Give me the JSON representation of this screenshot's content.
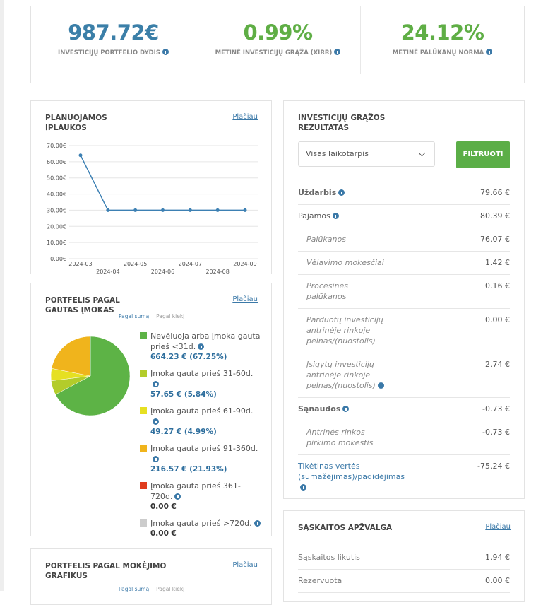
{
  "stats": [
    {
      "value": "987.72€",
      "label": "INVESTICIJŲ PORTFELIO DYDIS",
      "color": "#3b7fa8"
    },
    {
      "value": "0.99%",
      "label": "METINĖ INVESTICIJŲ GRĄŽA (XIRR)",
      "color": "#5fae45"
    },
    {
      "value": "24.12%",
      "label": "METINĖ PALŪKANŲ NORMA",
      "color": "#5fae45"
    }
  ],
  "planned": {
    "title": "PLANUOJAMOS ĮPLAUKOS",
    "link": "Plačiau",
    "chart": {
      "type": "line",
      "categories": [
        "2024-03",
        "2024-04",
        "2024-05",
        "2024-06",
        "2024-07",
        "2024-08",
        "2024-09"
      ],
      "values": [
        64,
        30,
        30,
        30,
        30,
        30,
        30
      ],
      "color": "#3d80b3",
      "grid": true,
      "ylim": [
        0,
        70
      ],
      "yticks": [
        {
          "value": 0,
          "label": "0.00€"
        },
        {
          "value": 10,
          "label": "10.00€"
        },
        {
          "value": 20,
          "label": "20.00€"
        },
        {
          "value": 30,
          "label": "30.00€"
        },
        {
          "value": 40,
          "label": "40.00€"
        },
        {
          "value": 50,
          "label": "50.00€"
        },
        {
          "value": 60,
          "label": "60.00€"
        },
        {
          "value": 70,
          "label": "70.00€"
        }
      ]
    }
  },
  "payments": {
    "title": "PORTFELIS PAGAL GAUTAS ĮMOKAS",
    "link": "Plačiau",
    "toggle": [
      "Pagal sumą",
      "Pagal kiekį"
    ],
    "chart": {
      "type": "pie",
      "categories": [
        "Nevėluoja arba įmoka gauta prieš <31d.",
        "Įmoka gauta prieš 31-60d.",
        "Įmoka gauta prieš 61-90d.",
        "Įmoka gauta prieš 91-360d.",
        "Įmoka gauta prieš 361-720d.",
        "Įmoka gauta prieš >720d."
      ],
      "values": [
        67.25,
        5.84,
        4.99,
        21.93,
        0,
        0
      ],
      "value_labels": [
        "664.23 € (67.25%)",
        "57.65 € (5.84%)",
        "49.27 € (4.99%)",
        "216.57 € (21.93%)",
        "0.00 €",
        "0.00 €"
      ],
      "colors": [
        "#5db346",
        "#b3cc2b",
        "#e6e022",
        "#f0b41c",
        "#e03c1e",
        "#cccccc"
      ]
    }
  },
  "schedule": {
    "title": "PORTFELIS PAGAL MOKĖJIMO GRAFIKUS",
    "link": "Plačiau",
    "toggle": [
      "Pagal sumą",
      "Pagal kiekį"
    ]
  },
  "returns": {
    "title": "INVESTICIJŲ GRĄŽOS REZULTATAS",
    "select": "Visas laikotarpis",
    "button": "FILTRUOTI",
    "rows": [
      {
        "label": "Uždarbis",
        "value": "79.66 €",
        "info": true,
        "style": "b"
      },
      {
        "label": "Pajamos",
        "value": "80.39 €",
        "info": true,
        "style": "n"
      },
      {
        "label": "Palūkanos",
        "value": "76.07 €",
        "info": false,
        "style": "l1"
      },
      {
        "label": "Vėlavimo mokesčiai",
        "value": "1.42 €",
        "info": false,
        "style": "l1"
      },
      {
        "label": "Procesinės palūkanos",
        "value": "0.16 €",
        "info": false,
        "style": "l1"
      },
      {
        "label": "Parduotų investicijų antrinėje rinkoje pelnas/(nuostolis)",
        "value": "0.00 €",
        "info": false,
        "style": "l1"
      },
      {
        "label": "Įsigytų investicijų antrinėje rinkoje pelnas/(nuostolis)",
        "value": "2.74 €",
        "info": true,
        "style": "l1"
      },
      {
        "label": "Sąnaudos",
        "value": "-0.73 €",
        "info": true,
        "style": "b"
      },
      {
        "label": "Antrinės rinkos pirkimo mokestis",
        "value": "-0.73 €",
        "info": false,
        "style": "l1"
      },
      {
        "label": "Tikėtinas vertės (sumažėjimas)/padidėjimas",
        "value": "-75.24 €",
        "info": true,
        "style": "blue"
      }
    ]
  },
  "account": {
    "title": "SĄSKAITOS APŽVALGA",
    "link": "Plačiau",
    "rows": [
      {
        "label": "Sąskaitos likutis",
        "value": "1.94 €"
      },
      {
        "label": "Rezervuota",
        "value": "0.00 €"
      }
    ]
  }
}
